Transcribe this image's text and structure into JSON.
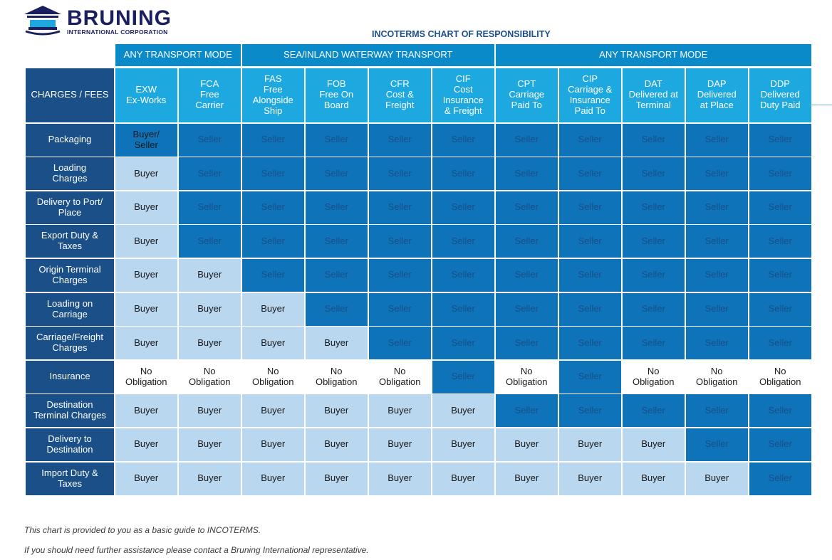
{
  "logo": {
    "name": "BRUNING",
    "subtitle": "INTERNATIONAL CORPORATION"
  },
  "title": "INCOTERMS CHART OF RESPONSIBILITY",
  "groups": [
    {
      "label": "ANY TRANSPORT MODE",
      "span": 2
    },
    {
      "label": "SEA/INLAND WATERWAY TRANSPORT",
      "span": 4
    },
    {
      "label": "ANY TRANSPORT MODE",
      "span": 5
    }
  ],
  "corner_label": "CHARGES / FEES",
  "terms": [
    "EXW\nEx-Works",
    "FCA\nFree\nCarrier",
    "FAS\nFree\nAlongside\nShip",
    "FOB\nFree On\nBoard",
    "CFR\nCost &\nFreight",
    "CIF\nCost\nInsurance\n& Freight",
    "CPT\nCarriage\nPaid To",
    "CIP\nCarriage &\nInsurance\nPaid To",
    "DAT\nDelivered at\nTerminal",
    "DAP\nDelivered\nat Place",
    "DDP\nDelivered\nDuty Paid"
  ],
  "rows": [
    {
      "label": "Packaging",
      "values": [
        "Buyer/\nSeller",
        "Seller",
        "Seller",
        "Seller",
        "Seller",
        "Seller",
        "Seller",
        "Seller",
        "Seller",
        "Seller",
        "Seller"
      ]
    },
    {
      "label": "Loading\nCharges",
      "values": [
        "Buyer",
        "Seller",
        "Seller",
        "Seller",
        "Seller",
        "Seller",
        "Seller",
        "Seller",
        "Seller",
        "Seller",
        "Seller"
      ]
    },
    {
      "label": "Delivery to Port/\nPlace",
      "values": [
        "Buyer",
        "Seller",
        "Seller",
        "Seller",
        "Seller",
        "Seller",
        "Seller",
        "Seller",
        "Seller",
        "Seller",
        "Seller"
      ]
    },
    {
      "label": "Export Duty &\nTaxes",
      "values": [
        "Buyer",
        "Seller",
        "Seller",
        "Seller",
        "Seller",
        "Seller",
        "Seller",
        "Seller",
        "Seller",
        "Seller",
        "Seller"
      ]
    },
    {
      "label": "Origin Terminal\nCharges",
      "values": [
        "Buyer",
        "Buyer",
        "Seller",
        "Seller",
        "Seller",
        "Seller",
        "Seller",
        "Seller",
        "Seller",
        "Seller",
        "Seller"
      ]
    },
    {
      "label": "Loading on\nCarriage",
      "values": [
        "Buyer",
        "Buyer",
        "Buyer",
        "Seller",
        "Seller",
        "Seller",
        "Seller",
        "Seller",
        "Seller",
        "Seller",
        "Seller"
      ]
    },
    {
      "label": "Carriage/Freight\nCharges",
      "values": [
        "Buyer",
        "Buyer",
        "Buyer",
        "Buyer",
        "Seller",
        "Seller",
        "Seller",
        "Seller",
        "Seller",
        "Seller",
        "Seller"
      ]
    },
    {
      "label": "Insurance",
      "values": [
        "No\nObligation",
        "No\nObligation",
        "No\nObligation",
        "No\nObligation",
        "No\nObligation",
        "Seller",
        "No\nObligation",
        "Seller",
        "No\nObligation",
        "No\nObligation",
        "No\nObligation"
      ]
    },
    {
      "label": "Destination\nTerminal Charges",
      "values": [
        "Buyer",
        "Buyer",
        "Buyer",
        "Buyer",
        "Buyer",
        "Buyer",
        "Seller",
        "Seller",
        "Seller",
        "Seller",
        "Seller"
      ]
    },
    {
      "label": "Delivery to\nDestination",
      "values": [
        "Buyer",
        "Buyer",
        "Buyer",
        "Buyer",
        "Buyer",
        "Buyer",
        "Buyer",
        "Buyer",
        "Buyer",
        "Seller",
        "Seller"
      ]
    },
    {
      "label": "Import Duty &\nTaxes",
      "values": [
        "Buyer",
        "Buyer",
        "Buyer",
        "Buyer",
        "Buyer",
        "Buyer",
        "Buyer",
        "Buyer",
        "Buyer",
        "Buyer",
        "Seller"
      ]
    }
  ],
  "footer": {
    "line1": "This chart is provided to you as a basic guide to INCOTERMS.",
    "line2": "If you should need further assistance please contact a Bruning International representative."
  }
}
